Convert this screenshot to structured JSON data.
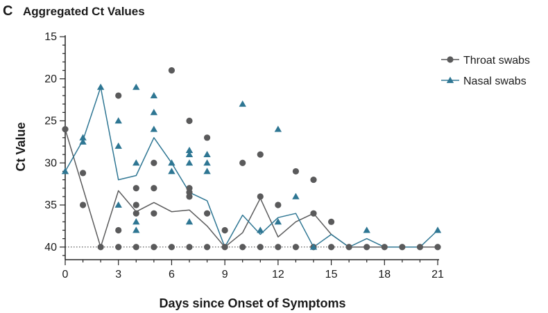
{
  "panel": {
    "letter": "C",
    "title": "Aggregated Ct Values"
  },
  "colors": {
    "throat": "#5a5a5b",
    "nasal": "#2e7693",
    "axis": "#222222",
    "text": "#1a1a1a"
  },
  "chart_data": {
    "type": "scatter",
    "xlabel": "Days since Onset of Symptoms",
    "ylabel": "Ct Value",
    "xlim": [
      0,
      21
    ],
    "ylim": [
      15,
      41.5
    ],
    "y_inverted": true,
    "xticks": [
      0,
      3,
      6,
      9,
      12,
      15,
      18,
      21
    ],
    "yticks": [
      15,
      20,
      25,
      30,
      35,
      40
    ],
    "reference_line": {
      "y": 40,
      "style": "dotted"
    },
    "legend": {
      "position": "top-right"
    },
    "series": [
      {
        "name": "Throat swabs",
        "marker": "circle",
        "points": [
          [
            0,
            26
          ],
          [
            1,
            31.2
          ],
          [
            1,
            35
          ],
          [
            2,
            40
          ],
          [
            3,
            22
          ],
          [
            3,
            38
          ],
          [
            3,
            40
          ],
          [
            4,
            33
          ],
          [
            4,
            35
          ],
          [
            4,
            36
          ],
          [
            4,
            40
          ],
          [
            5,
            30
          ],
          [
            5,
            33
          ],
          [
            5,
            36
          ],
          [
            5,
            40
          ],
          [
            6,
            19
          ],
          [
            6,
            40
          ],
          [
            7,
            25
          ],
          [
            7,
            33
          ],
          [
            7,
            33.5
          ],
          [
            7,
            34
          ],
          [
            7,
            40
          ],
          [
            8,
            27
          ],
          [
            8,
            36
          ],
          [
            8,
            40
          ],
          [
            9,
            38
          ],
          [
            9,
            40
          ],
          [
            10,
            30
          ],
          [
            10,
            40
          ],
          [
            11,
            29
          ],
          [
            11,
            34
          ],
          [
            11,
            40
          ],
          [
            12,
            35
          ],
          [
            12,
            40
          ],
          [
            13,
            31
          ],
          [
            13,
            40
          ],
          [
            14,
            32
          ],
          [
            14,
            36
          ],
          [
            14,
            40
          ],
          [
            15,
            37
          ],
          [
            15,
            40
          ],
          [
            16,
            40
          ],
          [
            17,
            40
          ],
          [
            18,
            40
          ],
          [
            19,
            40
          ],
          [
            20,
            40
          ],
          [
            21,
            40
          ]
        ],
        "mean_line": [
          [
            0,
            26
          ],
          [
            2,
            40
          ],
          [
            3,
            33.3
          ],
          [
            4,
            35.8
          ],
          [
            5,
            34.7
          ],
          [
            6,
            35.8
          ],
          [
            7,
            35.6
          ],
          [
            8,
            37.5
          ],
          [
            9,
            40
          ],
          [
            10,
            38.3
          ],
          [
            11,
            34.2
          ],
          [
            12,
            38.8
          ],
          [
            13,
            37
          ],
          [
            14,
            36
          ],
          [
            15,
            38.5
          ],
          [
            16,
            40
          ],
          [
            21,
            40
          ]
        ]
      },
      {
        "name": "Nasal swabs",
        "marker": "triangle",
        "points": [
          [
            0,
            31
          ],
          [
            1,
            27
          ],
          [
            1,
            27.5
          ],
          [
            2,
            21
          ],
          [
            3,
            25
          ],
          [
            3,
            28
          ],
          [
            3,
            35
          ],
          [
            4,
            21
          ],
          [
            4,
            30
          ],
          [
            4,
            37
          ],
          [
            4,
            38
          ],
          [
            5,
            22
          ],
          [
            5,
            24
          ],
          [
            5,
            26
          ],
          [
            6,
            30
          ],
          [
            6,
            31
          ],
          [
            7,
            28.5
          ],
          [
            7,
            29
          ],
          [
            7,
            30
          ],
          [
            7,
            37
          ],
          [
            8,
            29
          ],
          [
            8,
            30
          ],
          [
            8,
            31
          ],
          [
            10,
            23
          ],
          [
            11,
            38
          ],
          [
            12,
            26
          ],
          [
            12,
            37
          ],
          [
            13,
            34
          ],
          [
            14,
            40
          ],
          [
            17,
            38
          ],
          [
            21,
            38
          ]
        ],
        "mean_line": [
          [
            0,
            31
          ],
          [
            1,
            27.3
          ],
          [
            2,
            21
          ],
          [
            3,
            32
          ],
          [
            4,
            31.5
          ],
          [
            5,
            27
          ],
          [
            6,
            30
          ],
          [
            7,
            33.5
          ],
          [
            8,
            34.5
          ],
          [
            9,
            40
          ],
          [
            10,
            36.2
          ],
          [
            11,
            38.5
          ],
          [
            12,
            36.5
          ],
          [
            13,
            36
          ],
          [
            14,
            40
          ],
          [
            15,
            38.5
          ],
          [
            16,
            40
          ],
          [
            17,
            39
          ],
          [
            18,
            40
          ],
          [
            20,
            40
          ],
          [
            21,
            38
          ]
        ]
      }
    ]
  }
}
